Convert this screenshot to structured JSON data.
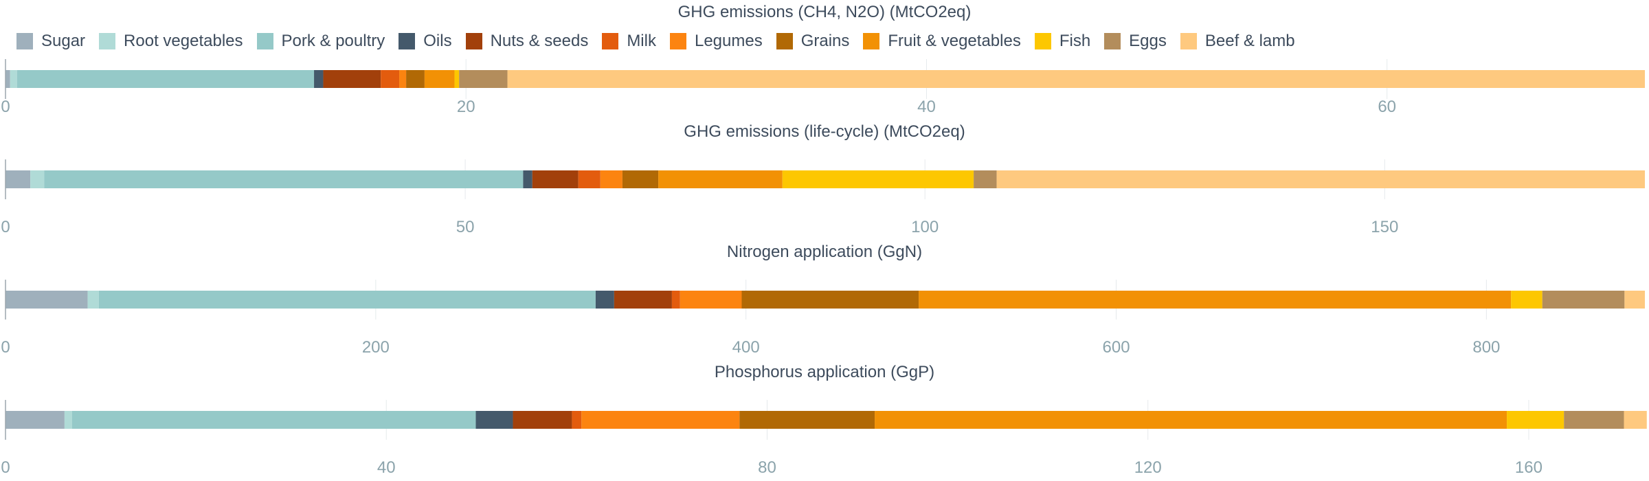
{
  "legend": {
    "items": [
      {
        "label": "Sugar",
        "color": "#9fb0bc"
      },
      {
        "label": "Root vegetables",
        "color": "#b0dbd7"
      },
      {
        "label": "Pork & poultry",
        "color": "#95c9c8"
      },
      {
        "label": "Oils",
        "color": "#44596b"
      },
      {
        "label": "Nuts & seeds",
        "color": "#a2400b"
      },
      {
        "label": "Milk",
        "color": "#e35c0e"
      },
      {
        "label": "Legumes",
        "color": "#fc8410"
      },
      {
        "label": "Grains",
        "color": "#b16905"
      },
      {
        "label": "Fruit & vegetables",
        "color": "#f29105"
      },
      {
        "label": "Fish",
        "color": "#fdc701"
      },
      {
        "label": "Eggs",
        "color": "#b38d5c"
      },
      {
        "label": "Beef & lamb",
        "color": "#fec97f"
      }
    ]
  },
  "chart_data": [
    {
      "type": "bar",
      "orientation": "horizontal",
      "stacked": true,
      "title": "GHG emissions (CH4, N2O) (MtCO2eq)",
      "xlim": [
        0,
        71.2
      ],
      "ticks": [
        0,
        20,
        40,
        60
      ],
      "grid": true,
      "legend": "top-left",
      "values": [
        0.2,
        0.3,
        12.9,
        0.4,
        2.5,
        0.8,
        0.3,
        0.8,
        1.3,
        0.2,
        2.1,
        49.4
      ]
    },
    {
      "type": "bar",
      "orientation": "horizontal",
      "stacked": true,
      "title": "GHG emissions (life-cycle) (MtCO2eq)",
      "xlim": [
        0,
        178.3
      ],
      "ticks": [
        0,
        50,
        100,
        150
      ],
      "grid": true,
      "values": [
        2.7,
        1.5,
        52.1,
        1.0,
        5.0,
        2.4,
        2.4,
        3.9,
        13.5,
        20.8,
        2.5,
        70.5
      ]
    },
    {
      "type": "bar",
      "orientation": "horizontal",
      "stacked": true,
      "title": "Nitrogen application (GgN)",
      "xlim": [
        0,
        885.6
      ],
      "ticks": [
        0,
        200,
        400,
        600,
        800
      ],
      "grid": true,
      "values": [
        44.4,
        6.0,
        268.4,
        10.0,
        31.2,
        4.4,
        33.3,
        95.6,
        320.0,
        16.9,
        44.4,
        11.0
      ]
    },
    {
      "type": "bar",
      "orientation": "horizontal",
      "stacked": true,
      "title": "Phosphorus application (GgP)",
      "xlim": [
        0,
        172.2
      ],
      "ticks": [
        0,
        40,
        80,
        120,
        160
      ],
      "grid": true,
      "values": [
        6.2,
        0.8,
        42.4,
        3.9,
        6.2,
        1.0,
        16.6,
        14.2,
        66.4,
        6.0,
        6.3,
        2.4
      ]
    }
  ]
}
